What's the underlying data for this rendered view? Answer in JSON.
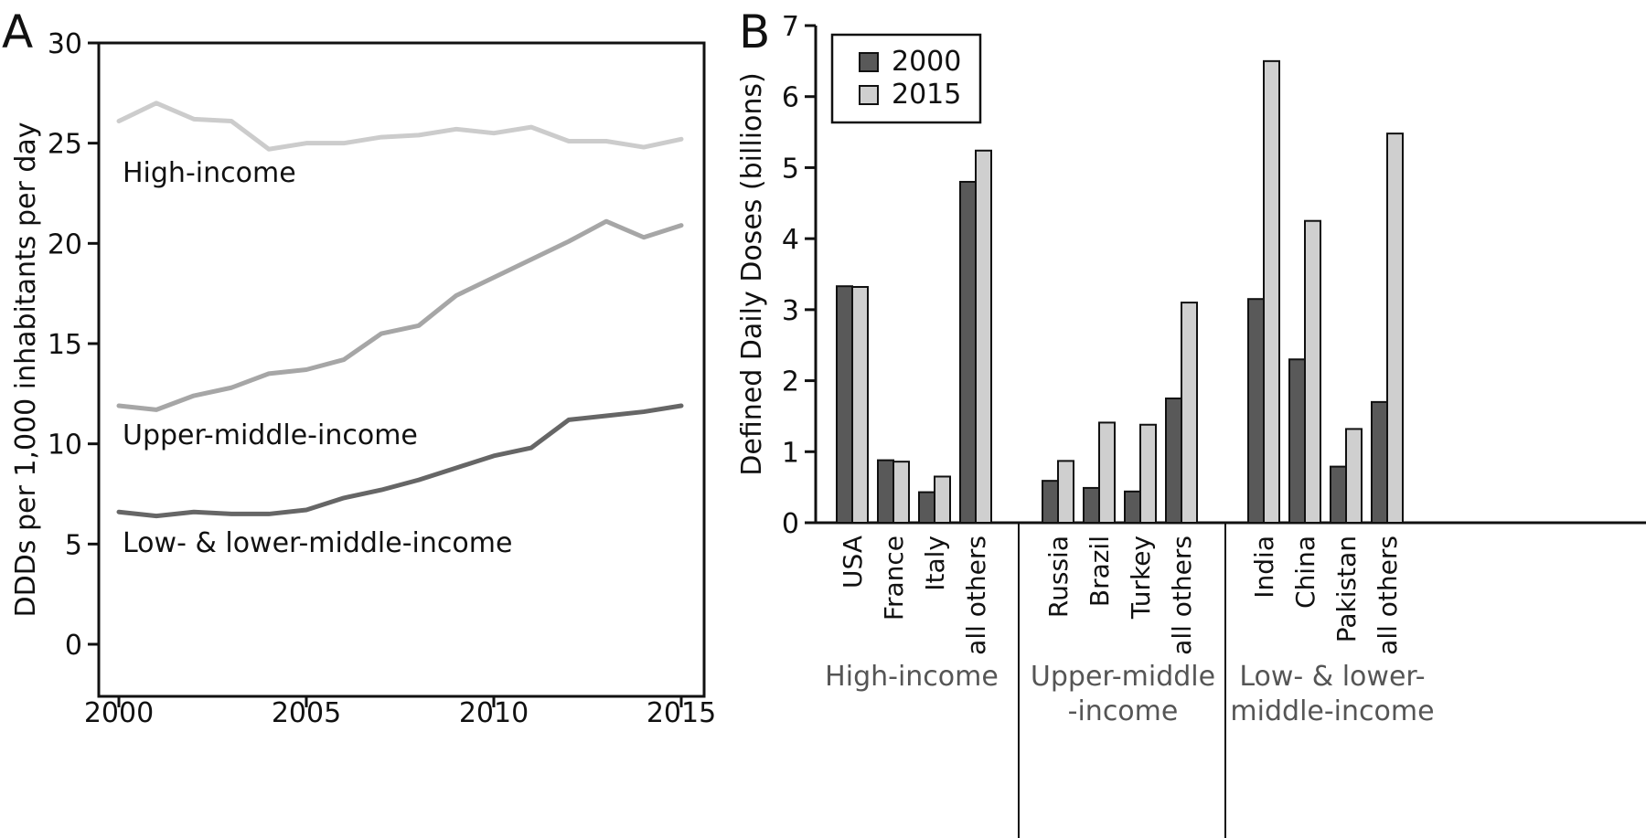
{
  "panels": {
    "a_letter": "A",
    "b_letter": "B"
  },
  "chart_data": [
    {
      "type": "line",
      "title": "",
      "xlabel": "",
      "ylabel": "DDDs per 1,000 inhabitants per day",
      "xlim": [
        2000,
        2015
      ],
      "ylim": [
        0,
        30
      ],
      "xticks": [
        2000,
        2005,
        2010,
        2015
      ],
      "yticks": [
        0,
        5,
        10,
        15,
        20,
        25,
        30
      ],
      "x": [
        2000,
        2001,
        2002,
        2003,
        2004,
        2005,
        2006,
        2007,
        2008,
        2009,
        2010,
        2011,
        2012,
        2013,
        2014,
        2015
      ],
      "series": [
        {
          "name": "High-income",
          "color": "#cccccc",
          "values": [
            26.1,
            27.0,
            26.2,
            26.1,
            24.7,
            25.0,
            25.0,
            25.3,
            25.4,
            25.7,
            25.5,
            25.8,
            25.1,
            25.1,
            24.8,
            25.2
          ]
        },
        {
          "name": "Upper-middle-income",
          "color": "#a6a6a6",
          "values": [
            11.9,
            11.7,
            12.4,
            12.8,
            13.5,
            13.7,
            14.2,
            15.5,
            15.9,
            17.4,
            18.3,
            19.2,
            20.1,
            21.1,
            20.3,
            20.9
          ]
        },
        {
          "name": "Low- & lower-middle-income",
          "color": "#666666",
          "values": [
            6.6,
            6.4,
            6.6,
            6.5,
            6.5,
            6.7,
            7.3,
            7.7,
            8.2,
            8.8,
            9.4,
            9.8,
            11.2,
            11.4,
            11.6,
            11.9
          ]
        }
      ],
      "grid": false
    },
    {
      "type": "bar",
      "title": "",
      "ylabel": "Defined Daily Doses (billions)",
      "ylim": [
        0,
        7
      ],
      "yticks": [
        0,
        1,
        2,
        3,
        4,
        5,
        6,
        7
      ],
      "legend_position": "top-left",
      "groups": [
        {
          "label": "High-income",
          "categories": [
            "USA",
            "France",
            "Italy",
            "all others"
          ]
        },
        {
          "label": "Upper-middle\n-income",
          "categories": [
            "Russia",
            "Brazil",
            "Turkey",
            "all others"
          ]
        },
        {
          "label": "Low- & lower-\nmiddle-income",
          "categories": [
            "India",
            "China",
            "Pakistan",
            "all others"
          ]
        }
      ],
      "categories": [
        "USA",
        "France",
        "Italy",
        "all others",
        "Russia",
        "Brazil",
        "Turkey",
        "all others",
        "India",
        "China",
        "Pakistan",
        "all others"
      ],
      "series": [
        {
          "name": "2000",
          "color": "#595959",
          "values": [
            3.33,
            0.88,
            0.43,
            4.8,
            0.59,
            0.49,
            0.44,
            1.75,
            3.15,
            2.3,
            0.79,
            1.7
          ]
        },
        {
          "name": "2015",
          "color": "#cfcfcf",
          "values": [
            3.32,
            0.86,
            0.65,
            5.24,
            0.87,
            1.41,
            1.38,
            3.1,
            6.5,
            4.25,
            1.32,
            5.48
          ]
        }
      ],
      "grid": false
    }
  ]
}
